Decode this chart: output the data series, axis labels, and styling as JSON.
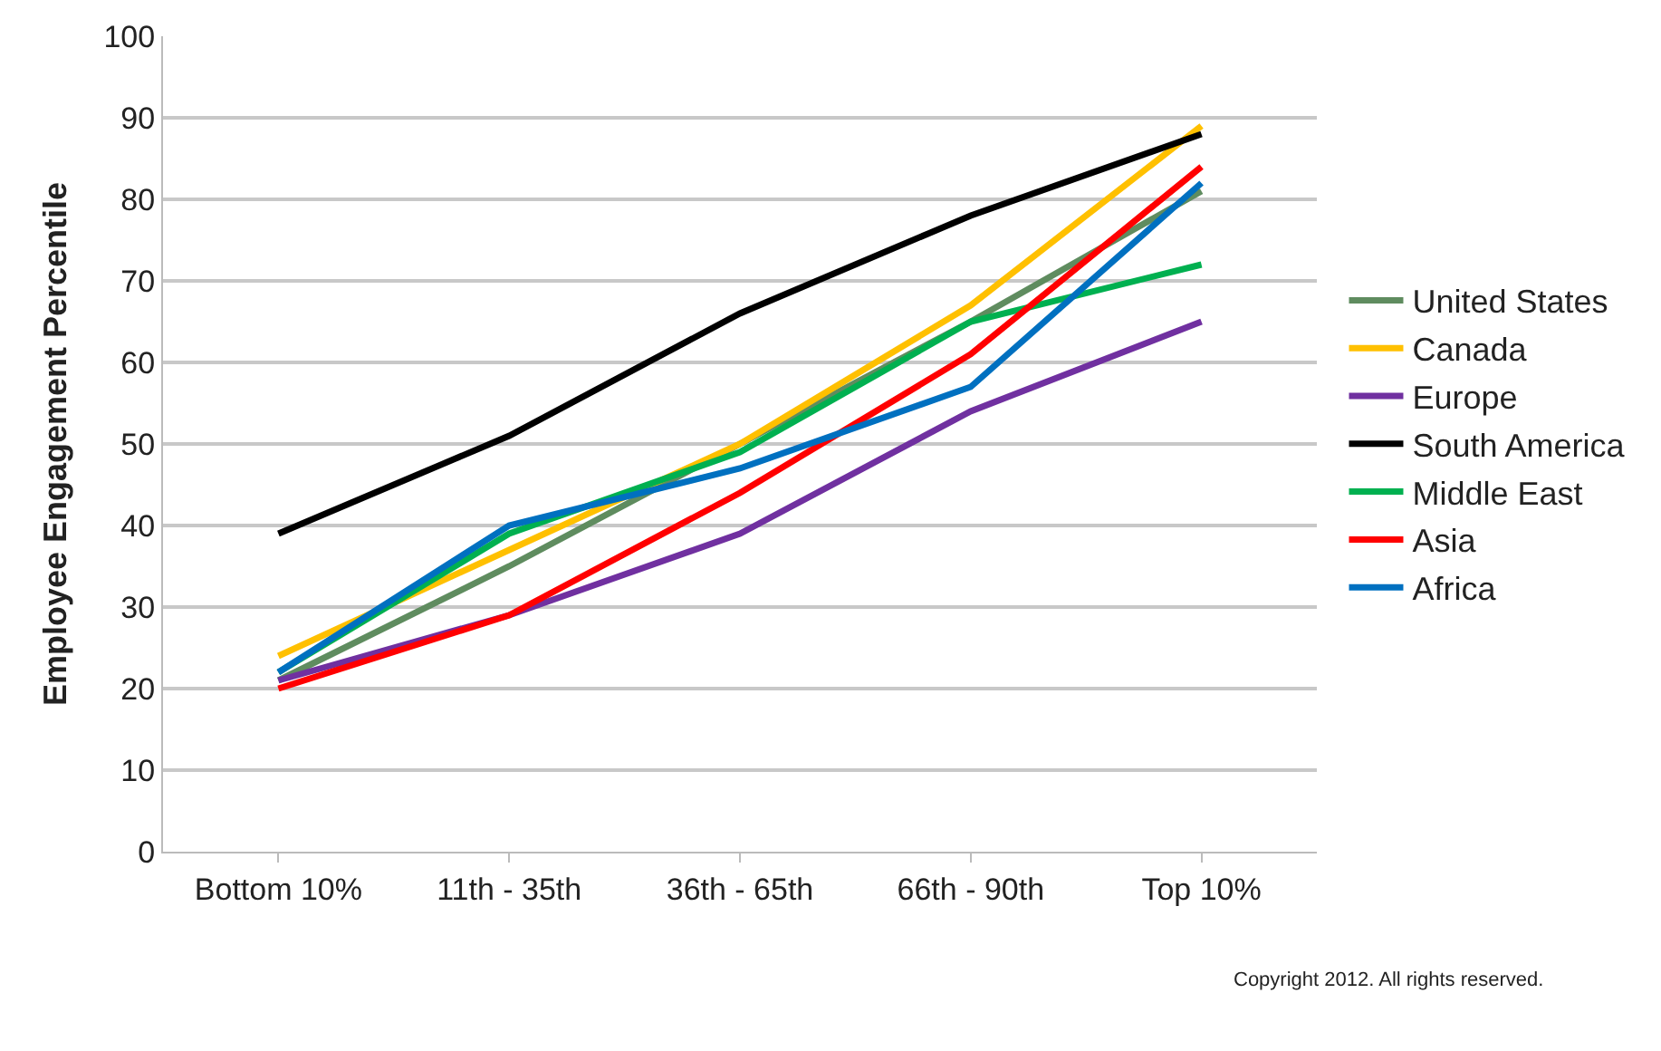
{
  "chart_data": {
    "type": "line",
    "ylabel": "Employee Engagement Percentile",
    "categories": [
      "Bottom 10%",
      "11th - 35th",
      "36th - 65th",
      "66th - 90th",
      "Top 10%"
    ],
    "series": [
      {
        "name": "United States",
        "color": "#5f8c5f",
        "values": [
          21,
          35,
          50,
          65,
          81
        ]
      },
      {
        "name": "Canada",
        "color": "#ffc000",
        "values": [
          24,
          37,
          50,
          67,
          89
        ]
      },
      {
        "name": "Europe",
        "color": "#7030a0",
        "values": [
          21,
          29,
          39,
          54,
          65
        ]
      },
      {
        "name": "South America",
        "color": "#000000",
        "values": [
          39,
          51,
          66,
          78,
          88
        ]
      },
      {
        "name": "Middle East",
        "color": "#00b050",
        "values": [
          22,
          39,
          49,
          65,
          72
        ]
      },
      {
        "name": "Asia",
        "color": "#ff0000",
        "values": [
          20,
          29,
          44,
          61,
          84
        ]
      },
      {
        "name": "Africa",
        "color": "#0070c0",
        "values": [
          22,
          40,
          47,
          57,
          82
        ]
      }
    ],
    "ylim": [
      0,
      100
    ],
    "yticks": [
      0,
      10,
      20,
      30,
      40,
      50,
      60,
      70,
      80,
      90,
      100
    ],
    "grid": "y",
    "legend": "right",
    "marker": "none",
    "line_style": "solid",
    "annotations": [
      "Copyright 2012. All rights reserved."
    ]
  }
}
